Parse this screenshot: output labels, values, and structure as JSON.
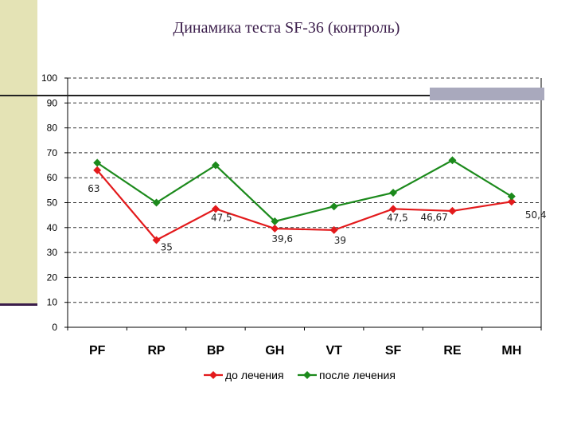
{
  "chart_data": {
    "type": "line",
    "title": "Динамика теста SF-36 (контроль)",
    "categories": [
      "PF",
      "RP",
      "BP",
      "GH",
      "VT",
      "SF",
      "RE",
      "MH"
    ],
    "ylim": [
      0,
      100
    ],
    "yticks": [
      0,
      10,
      20,
      30,
      40,
      50,
      60,
      70,
      80,
      90,
      100
    ],
    "grid": "horizontal-dashed",
    "legend_position": "bottom",
    "series": [
      {
        "name": "до лечения",
        "color": "#e31a1c",
        "values": [
          63,
          35,
          47.5,
          39.6,
          39,
          47.5,
          46.67,
          50.4
        ],
        "labels": [
          "63",
          "35",
          "47,5",
          "39,6",
          "39",
          "47,5",
          "46,67",
          "50,4"
        ]
      },
      {
        "name": "после лечения",
        "color": "#1c8a1c",
        "values": [
          66,
          50,
          65,
          42.5,
          48.5,
          54,
          67,
          52.5
        ],
        "labels": [
          "",
          "",
          "",
          "",
          "",
          "",
          "",
          ""
        ]
      }
    ]
  }
}
